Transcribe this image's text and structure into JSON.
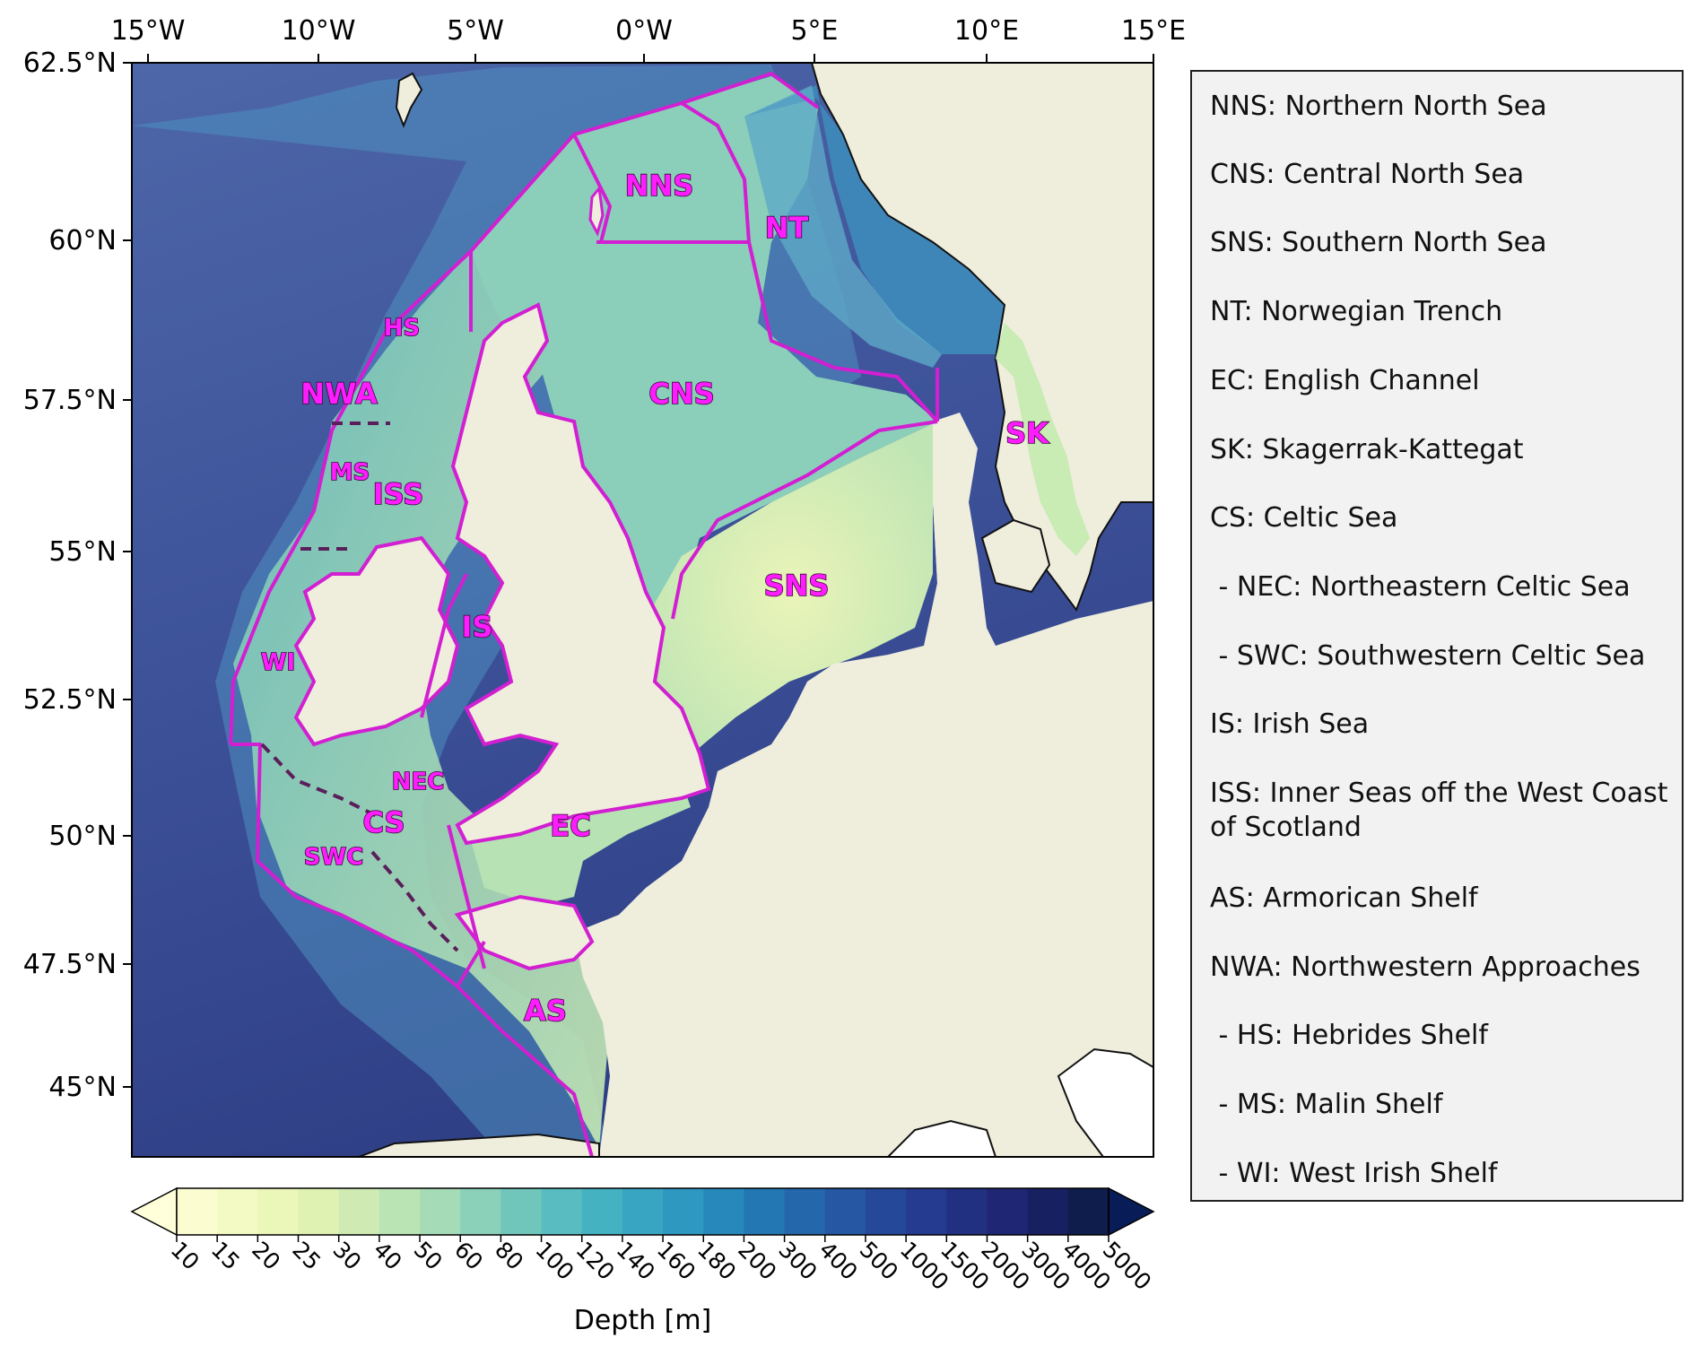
{
  "map": {
    "lon_ticks": [
      "15°W",
      "10°W",
      "5°W",
      "0°W",
      "5°E",
      "10°E",
      "15°E"
    ],
    "lat_ticks": [
      "62.5°N",
      "60°N",
      "57.5°N",
      "55°N",
      "52.5°N",
      "50°N",
      "47.5°N",
      "45°N"
    ],
    "colors": {
      "land": "#efeddc",
      "boundary": "#d21fd2",
      "coast": "#111111",
      "deep_ocean": "#3c4f97"
    },
    "regions": [
      {
        "code": "NNS"
      },
      {
        "code": "NT"
      },
      {
        "code": "HS"
      },
      {
        "code": "CNS"
      },
      {
        "code": "NWA"
      },
      {
        "code": "SK"
      },
      {
        "code": "MS"
      },
      {
        "code": "ISS"
      },
      {
        "code": "SNS"
      },
      {
        "code": "IS"
      },
      {
        "code": "WI"
      },
      {
        "code": "NEC"
      },
      {
        "code": "CS"
      },
      {
        "code": "EC"
      },
      {
        "code": "SWC"
      },
      {
        "code": "AS"
      }
    ]
  },
  "colorbar": {
    "title": "Depth [m]",
    "levels": [
      "10",
      "15",
      "20",
      "25",
      "30",
      "40",
      "50",
      "60",
      "80",
      "100",
      "120",
      "140",
      "160",
      "180",
      "200",
      "300",
      "400",
      "500",
      "1000",
      "1500",
      "2000",
      "3000",
      "4000",
      "5000"
    ],
    "colors": [
      "#fbfdd1",
      "#f4fac3",
      "#ebf6b9",
      "#e0f2b2",
      "#cfebb3",
      "#bbe4b5",
      "#a6dbb7",
      "#8bd0b9",
      "#70c6bb",
      "#58bcc1",
      "#45b2c2",
      "#38a6c2",
      "#2f98c0",
      "#2788bb",
      "#2378b4",
      "#2467ab",
      "#2557a2",
      "#254899",
      "#253b8f",
      "#223082",
      "#1f2673",
      "#172060",
      "#0e1d4c",
      "#081d58"
    ],
    "under_color": "#ffffd9",
    "over_color": "#081d58"
  },
  "legend": {
    "items": [
      "NNS: Northern North Sea",
      "CNS: Central North Sea",
      "SNS: Southern North Sea",
      "NT: Norwegian Trench",
      "EC: English Channel",
      "SK: Skagerrak-Kattegat",
      "CS: Celtic Sea",
      " - NEC: Northeastern Celtic Sea",
      " - SWC: Southwestern Celtic Sea",
      "IS: Irish Sea",
      "ISS: Inner Seas off the West Coast of Scotland",
      "AS: Armorican Shelf",
      "NWA: Northwestern Approaches",
      " - HS: Hebrides Shelf",
      " - MS: Malin Shelf",
      " - WI: West Irish Shelf"
    ]
  }
}
